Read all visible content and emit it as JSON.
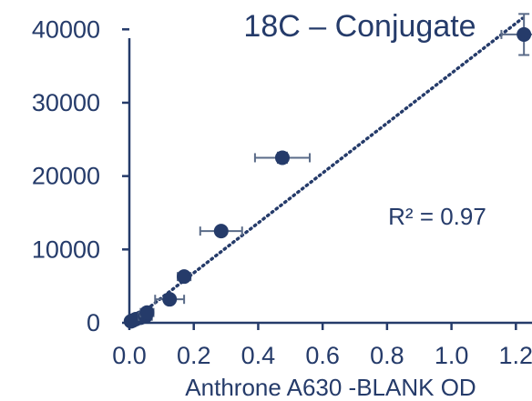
{
  "chart_data": {
    "type": "scatter",
    "title": "18C – Conjugate",
    "xlabel": "Anthrone A630 -BLANK OD",
    "ylabel": "",
    "xlim": [
      0,
      1.25
    ],
    "ylim": [
      0,
      44000
    ],
    "x_ticks": [
      "0.0",
      "0.2",
      "0.4",
      "0.6",
      "0.8",
      "1.0",
      "1.2"
    ],
    "x_tick_values": [
      0,
      0.2,
      0.4,
      0.6,
      0.8,
      1.0,
      1.2
    ],
    "y_ticks": [
      "0",
      "10000",
      "20000",
      "30000",
      "40000"
    ],
    "y_tick_values": [
      0,
      10000,
      20000,
      30000,
      40000
    ],
    "grid": false,
    "annotation": "R² = 0.97",
    "trendline": {
      "x": [
        0,
        1.22
      ],
      "y": [
        0,
        41500
      ],
      "style": "dotted"
    },
    "points": [
      {
        "x": 0.005,
        "y": 200,
        "xerr": 0.005,
        "yerr": 0
      },
      {
        "x": 0.01,
        "y": 300,
        "xerr": 0.005,
        "yerr": 0
      },
      {
        "x": 0.02,
        "y": 500,
        "xerr": 0.01,
        "yerr": 0
      },
      {
        "x": 0.035,
        "y": 700,
        "xerr": 0.01,
        "yerr": 0
      },
      {
        "x": 0.05,
        "y": 900,
        "xerr": 0.02,
        "yerr": 0
      },
      {
        "x": 0.055,
        "y": 1400,
        "xerr": 0.02,
        "yerr": 0
      },
      {
        "x": 0.125,
        "y": 3200,
        "xerr": 0.045,
        "yerr": 0
      },
      {
        "x": 0.17,
        "y": 6300,
        "xerr": 0.02,
        "yerr": 0
      },
      {
        "x": 0.285,
        "y": 12500,
        "xerr": 0.065,
        "yerr": 0
      },
      {
        "x": 0.475,
        "y": 22500,
        "xerr": 0.085,
        "yerr": 700
      },
      {
        "x": 1.225,
        "y": 39300,
        "xerr": 0.07,
        "yerr": 2800
      }
    ]
  },
  "colors": {
    "text": "#253b6a",
    "marker": "#253b6a",
    "axis": "#253b6a",
    "errorbar": "#5a6b88"
  }
}
